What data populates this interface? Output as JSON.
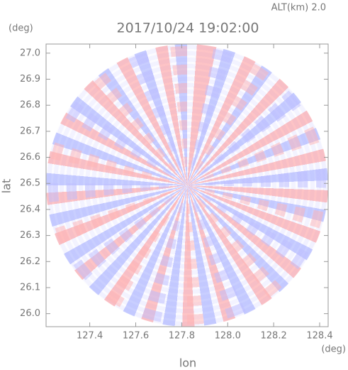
{
  "chart_data": {
    "type": "image",
    "title": "2017/10/24 19:02:00",
    "annotation": "ALT(km)  2.0",
    "xlabel": "lon",
    "ylabel": "lat",
    "xunit": "(deg)",
    "yunit": "(deg)",
    "xlim": [
      127.21,
      128.437
    ],
    "ylim": [
      25.95,
      27.035
    ],
    "xticks": [
      127.4,
      127.6,
      127.8,
      {
        "value": 128.0,
        "label": "128.0"
      },
      128.2,
      128.4
    ],
    "yticks": [
      {
        "value": 26.0,
        "label": "26.0"
      },
      26.1,
      26.2,
      26.3,
      26.4,
      26.5,
      26.6,
      26.7,
      26.8,
      26.9,
      {
        "value": 27.0,
        "label": "27.0"
      }
    ]
  }
}
